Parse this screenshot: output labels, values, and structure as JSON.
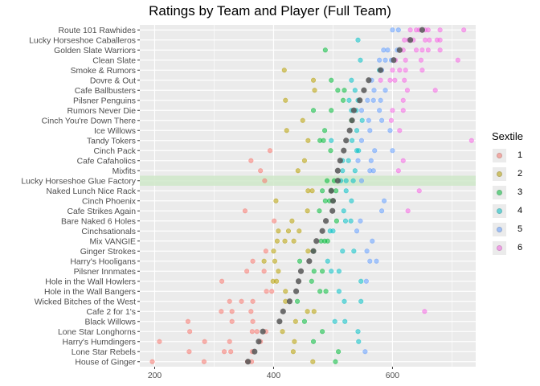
{
  "chart_data": {
    "type": "scatter",
    "title": "Ratings by Team and Player (Full Team)",
    "xlabel": "",
    "ylabel": "",
    "xlim": [
      175,
      740
    ],
    "xticks": [
      200,
      400,
      600
    ],
    "legend": {
      "title": "Sextile",
      "position": "right",
      "labels": [
        "1",
        "2",
        "3",
        "4",
        "5",
        "6"
      ]
    },
    "colors": {
      "1": "#F8766D",
      "2": "#B79F00",
      "3": "#00BA38",
      "4": "#00BFC4",
      "5": "#619CFF",
      "6": "#F564E3",
      "mean": "#555555",
      "highlight_band": "#cfe8c9",
      "panel": "#EBEBEB",
      "grid": "#FFFFFF"
    },
    "highlighted_team": "Lucky Horseshoe Glue Factory",
    "teams": [
      {
        "name": "Route 101 Rawhides",
        "mean": 650,
        "ratings": [
          [
            5,
            600
          ],
          [
            5,
            610
          ],
          [
            6,
            630
          ],
          [
            6,
            640
          ],
          [
            6,
            645
          ],
          [
            6,
            655
          ],
          [
            6,
            660
          ],
          [
            6,
            680
          ],
          [
            6,
            720
          ]
        ]
      },
      {
        "name": "Lucky Horseshoe Caballeros",
        "mean": 630,
        "ratings": [
          [
            4,
            542
          ],
          [
            6,
            620
          ],
          [
            6,
            627
          ],
          [
            6,
            635
          ],
          [
            6,
            655
          ],
          [
            6,
            662
          ],
          [
            6,
            675
          ],
          [
            6,
            680
          ]
        ]
      },
      {
        "name": "Golden Slate Warriors",
        "mean": 612,
        "ratings": [
          [
            3,
            487
          ],
          [
            5,
            585
          ],
          [
            5,
            592
          ],
          [
            5,
            608
          ],
          [
            6,
            618
          ],
          [
            6,
            640
          ],
          [
            6,
            650
          ],
          [
            6,
            660
          ],
          [
            6,
            680
          ]
        ]
      },
      {
        "name": "Clean Slate",
        "mean": 602,
        "ratings": [
          [
            4,
            546
          ],
          [
            5,
            578
          ],
          [
            5,
            588
          ],
          [
            5,
            598
          ],
          [
            6,
            605
          ],
          [
            6,
            622
          ],
          [
            6,
            648
          ],
          [
            6,
            710
          ]
        ]
      },
      {
        "name": "Smoke & Rumors",
        "mean": 580,
        "ratings": [
          [
            2,
            418
          ],
          [
            4,
            578
          ],
          [
            5,
            582
          ],
          [
            6,
            600
          ],
          [
            6,
            612
          ],
          [
            6,
            622
          ],
          [
            6,
            650
          ]
        ]
      },
      {
        "name": "Dovre & Out",
        "mean": 560,
        "ratings": [
          [
            2,
            467
          ],
          [
            3,
            497
          ],
          [
            4,
            531
          ],
          [
            5,
            565
          ],
          [
            6,
            580
          ],
          [
            6,
            596
          ],
          [
            6,
            604
          ],
          [
            6,
            620
          ]
        ]
      },
      {
        "name": "Cafe Ballbusters",
        "mean": 552,
        "ratings": [
          [
            2,
            469
          ],
          [
            3,
            508
          ],
          [
            3,
            519
          ],
          [
            4,
            537
          ],
          [
            5,
            569
          ],
          [
            5,
            588
          ],
          [
            6,
            625
          ],
          [
            6,
            672
          ]
        ]
      },
      {
        "name": "Pilsner Penguins",
        "mean": 545,
        "ratings": [
          [
            2,
            420
          ],
          [
            3,
            517
          ],
          [
            4,
            527
          ],
          [
            4,
            542
          ],
          [
            5,
            558
          ],
          [
            5,
            568
          ],
          [
            5,
            580
          ],
          [
            6,
            618
          ]
        ]
      },
      {
        "name": "Rumors Never Die",
        "mean": 535,
        "ratings": [
          [
            3,
            467
          ],
          [
            3,
            497
          ],
          [
            4,
            531
          ],
          [
            4,
            539
          ],
          [
            5,
            548
          ],
          [
            5,
            578
          ],
          [
            6,
            600
          ],
          [
            6,
            618
          ]
        ]
      },
      {
        "name": "Cinch You're Down There",
        "mean": 532,
        "ratings": [
          [
            2,
            449
          ],
          [
            3,
            531
          ],
          [
            4,
            549
          ],
          [
            5,
            560
          ],
          [
            5,
            582
          ],
          [
            6,
            598
          ]
        ]
      },
      {
        "name": "Ice Willows",
        "mean": 528,
        "ratings": [
          [
            2,
            422
          ],
          [
            3,
            486
          ],
          [
            4,
            540
          ],
          [
            5,
            562
          ],
          [
            5,
            596
          ],
          [
            6,
            612
          ]
        ]
      },
      {
        "name": "Tandy Tokers",
        "mean": 522,
        "ratings": [
          [
            2,
            458
          ],
          [
            3,
            478
          ],
          [
            3,
            484
          ],
          [
            4,
            497
          ],
          [
            4,
            532
          ],
          [
            5,
            548
          ],
          [
            6,
            733
          ]
        ]
      },
      {
        "name": "Cinch Pack",
        "mean": 518,
        "ratings": [
          [
            1,
            394
          ],
          [
            3,
            496
          ],
          [
            4,
            540
          ],
          [
            4,
            543
          ],
          [
            5,
            570
          ],
          [
            5,
            600
          ]
        ]
      },
      {
        "name": "Cafe Cafaholics",
        "mean": 512,
        "ratings": [
          [
            1,
            362
          ],
          [
            2,
            452
          ],
          [
            4,
            516
          ],
          [
            4,
            526
          ],
          [
            5,
            542
          ],
          [
            5,
            564
          ],
          [
            6,
            618
          ]
        ]
      },
      {
        "name": "Mixfits",
        "mean": 508,
        "ratings": [
          [
            1,
            378
          ],
          [
            2,
            441
          ],
          [
            4,
            516
          ],
          [
            4,
            537
          ],
          [
            5,
            562
          ],
          [
            5,
            568
          ],
          [
            6,
            610
          ]
        ]
      },
      {
        "name": "Lucky Horseshoe Glue Factory",
        "mean": 508,
        "ratings": [
          [
            1,
            385
          ],
          [
            3,
            490
          ],
          [
            3,
            502
          ],
          [
            4,
            513
          ],
          [
            4,
            522
          ],
          [
            4,
            534
          ],
          [
            5,
            548
          ]
        ]
      },
      {
        "name": "Naked Lunch Nice Rack",
        "mean": 497,
        "ratings": [
          [
            2,
            458
          ],
          [
            2,
            465
          ],
          [
            3,
            482
          ],
          [
            3,
            497
          ],
          [
            3,
            505
          ],
          [
            4,
            522
          ],
          [
            6,
            645
          ]
        ]
      },
      {
        "name": "Cinch Phoenix",
        "mean": 500,
        "ratings": [
          [
            2,
            404
          ],
          [
            3,
            487
          ],
          [
            3,
            494
          ],
          [
            3,
            500
          ],
          [
            4,
            531
          ],
          [
            5,
            586
          ]
        ]
      },
      {
        "name": "Cafe Strikes Again",
        "mean": 499,
        "ratings": [
          [
            1,
            352
          ],
          [
            2,
            457
          ],
          [
            3,
            477
          ],
          [
            4,
            518
          ],
          [
            5,
            582
          ],
          [
            6,
            626
          ]
        ]
      },
      {
        "name": "Bare Naked 6 Holes",
        "mean": 488,
        "ratings": [
          [
            1,
            401
          ],
          [
            2,
            431
          ],
          [
            3,
            506
          ],
          [
            4,
            521
          ],
          [
            4,
            530
          ],
          [
            5,
            546
          ]
        ]
      },
      {
        "name": "Cinchsationals",
        "mean": 482,
        "ratings": [
          [
            2,
            408
          ],
          [
            2,
            425
          ],
          [
            2,
            443
          ],
          [
            4,
            495
          ],
          [
            4,
            500
          ],
          [
            5,
            540
          ]
        ]
      },
      {
        "name": "Mix VANGIE",
        "mean": 472,
        "ratings": [
          [
            2,
            406
          ],
          [
            2,
            419
          ],
          [
            2,
            434
          ],
          [
            3,
            480
          ],
          [
            3,
            486
          ],
          [
            3,
            491
          ],
          [
            5,
            566
          ]
        ]
      },
      {
        "name": "Ginger Strokes",
        "mean": 467,
        "ratings": [
          [
            1,
            387
          ],
          [
            2,
            400
          ],
          [
            2,
            458
          ],
          [
            3,
            467
          ],
          [
            4,
            516
          ],
          [
            4,
            535
          ],
          [
            5,
            557
          ]
        ]
      },
      {
        "name": "Harry's Hooligans",
        "mean": 460,
        "ratings": [
          [
            1,
            365
          ],
          [
            2,
            384
          ],
          [
            2,
            402
          ],
          [
            3,
            444
          ],
          [
            4,
            491
          ],
          [
            5,
            562
          ],
          [
            5,
            573
          ]
        ]
      },
      {
        "name": "Pilsner Innmates",
        "mean": 446,
        "ratings": [
          [
            1,
            355
          ],
          [
            1,
            384
          ],
          [
            2,
            408
          ],
          [
            3,
            468
          ],
          [
            3,
            482
          ],
          [
            4,
            497
          ],
          [
            4,
            510
          ]
        ]
      },
      {
        "name": "Hole in the Wall Howlers",
        "mean": 442,
        "ratings": [
          [
            1,
            313
          ],
          [
            2,
            399
          ],
          [
            2,
            405
          ],
          [
            3,
            464
          ],
          [
            4,
            547
          ],
          [
            5,
            556
          ]
        ]
      },
      {
        "name": "Hole in the Wall Bangers",
        "mean": 438,
        "ratings": [
          [
            1,
            388
          ],
          [
            1,
            397
          ],
          [
            2,
            420
          ],
          [
            3,
            478
          ],
          [
            3,
            488
          ],
          [
            4,
            510
          ]
        ]
      },
      {
        "name": "Wicked Bitches of the West",
        "mean": 427,
        "ratings": [
          [
            1,
            326
          ],
          [
            1,
            346
          ],
          [
            1,
            365
          ],
          [
            2,
            420
          ],
          [
            3,
            440
          ],
          [
            4,
            519
          ],
          [
            4,
            547
          ]
        ]
      },
      {
        "name": "Cafe 2 for 1's",
        "mean": 416,
        "ratings": [
          [
            1,
            312
          ],
          [
            1,
            330
          ],
          [
            1,
            362
          ],
          [
            2,
            457
          ],
          [
            2,
            468
          ],
          [
            6,
            654
          ]
        ]
      },
      {
        "name": "Black Willows",
        "mean": 410,
        "ratings": [
          [
            1,
            256
          ],
          [
            1,
            330
          ],
          [
            1,
            365
          ],
          [
            2,
            437
          ],
          [
            3,
            452
          ],
          [
            4,
            503
          ],
          [
            4,
            520
          ]
        ]
      },
      {
        "name": "Lone Star Longhorns",
        "mean": 382,
        "ratings": [
          [
            1,
            259
          ],
          [
            1,
            364
          ],
          [
            1,
            372
          ],
          [
            1,
            387
          ],
          [
            2,
            415
          ],
          [
            3,
            482
          ],
          [
            4,
            542
          ]
        ]
      },
      {
        "name": "Harry's Humdingers",
        "mean": 375,
        "ratings": [
          [
            1,
            208
          ],
          [
            1,
            284
          ],
          [
            1,
            326
          ],
          [
            1,
            378
          ],
          [
            2,
            435
          ],
          [
            3,
            467
          ],
          [
            4,
            543
          ]
        ]
      },
      {
        "name": "Lone Star Rebels",
        "mean": 368,
        "ratings": [
          [
            1,
            258
          ],
          [
            1,
            317
          ],
          [
            1,
            328
          ],
          [
            1,
            364
          ],
          [
            2,
            433
          ],
          [
            3,
            509
          ],
          [
            5,
            554
          ]
        ]
      },
      {
        "name": "House of Ginger",
        "mean": 357,
        "ratings": [
          [
            1,
            196
          ],
          [
            1,
            283
          ],
          [
            1,
            356
          ],
          [
            1,
            363
          ],
          [
            2,
            466
          ],
          [
            3,
            504
          ]
        ]
      }
    ]
  }
}
